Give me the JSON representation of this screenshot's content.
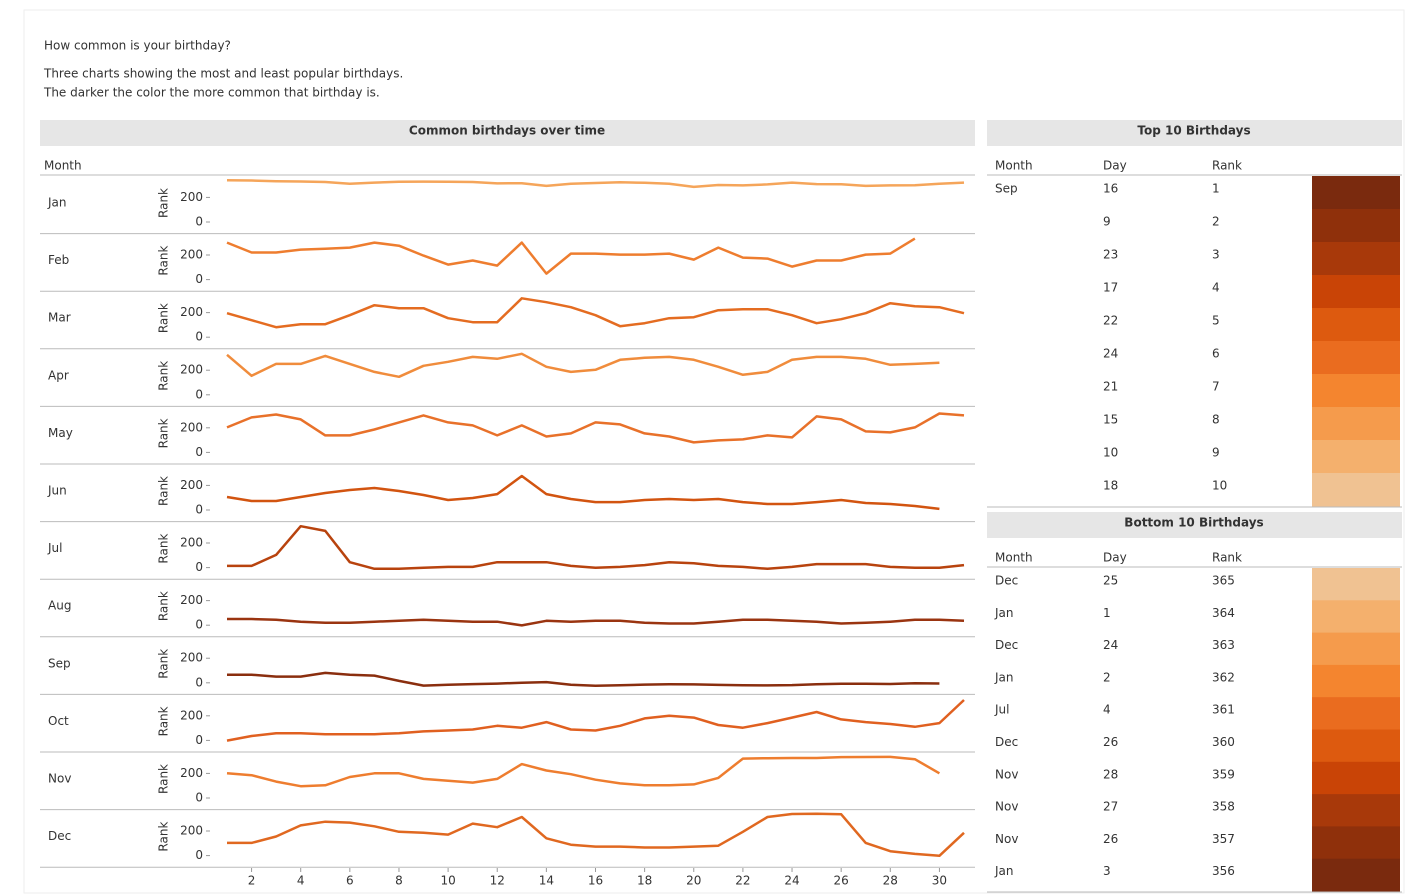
{
  "header": {
    "title": "How common is your birthday?",
    "subtitle_lines": [
      "Three charts showing the most and least popular birthdays.",
      "The darker the color the more common that birthday is."
    ]
  },
  "chart_data": {
    "type": "line",
    "title": "Common birthdays over time",
    "facet_label": "Month",
    "y_label": "Rank",
    "x": [
      1,
      2,
      3,
      4,
      5,
      6,
      7,
      8,
      9,
      10,
      11,
      12,
      13,
      14,
      15,
      16,
      17,
      18,
      19,
      20,
      21,
      22,
      23,
      24,
      25,
      26,
      27,
      28,
      29,
      30,
      31
    ],
    "xlim": [
      1,
      31
    ],
    "xticks": [
      2,
      4,
      6,
      8,
      10,
      12,
      14,
      16,
      18,
      20,
      22,
      24,
      26,
      28,
      30
    ],
    "ylim": [
      0,
      366
    ],
    "yticks": [
      0,
      200
    ],
    "series": [
      {
        "name": "Jan",
        "color": "#f5a55a",
        "values": [
          364,
          362,
          356,
          354,
          350,
          335,
          345,
          352,
          353,
          352,
          350,
          338,
          340,
          318,
          335,
          342,
          347,
          343,
          336,
          310,
          325,
          322,
          330,
          345,
          333,
          332,
          318,
          322,
          324,
          335,
          345
        ]
      },
      {
        "name": "Feb",
        "color": "#ee7d2f",
        "values": [
          325,
          245,
          245,
          268,
          275,
          285,
          325,
          300,
          220,
          146,
          180,
          138,
          325,
          73,
          236,
          236,
          228,
          228,
          236,
          187,
          285,
          203,
          195,
          130,
          180,
          180,
          228,
          236,
          358,
          null,
          null
        ]
      },
      {
        "name": "Mar",
        "color": "#e46c21",
        "values": [
          220,
          163,
          106,
          130,
          130,
          203,
          285,
          260,
          260,
          179,
          146,
          146,
          341,
          309,
          268,
          203,
          114,
          138,
          179,
          187,
          244,
          252,
          252,
          203,
          138,
          171,
          220,
          301,
          276,
          268,
          220
        ]
      },
      {
        "name": "Apr",
        "color": "#f08c3c",
        "values": [
          350,
          179,
          276,
          276,
          341,
          276,
          211,
          171,
          260,
          293,
          333,
          317,
          358,
          252,
          211,
          228,
          309,
          325,
          333,
          309,
          252,
          187,
          211,
          309,
          333,
          333,
          317,
          268,
          276,
          285,
          null
        ]
      },
      {
        "name": "May",
        "color": "#e8712a",
        "values": [
          228,
          309,
          333,
          293,
          163,
          163,
          211,
          268,
          325,
          268,
          244,
          163,
          244,
          154,
          179,
          268,
          252,
          179,
          154,
          106,
          122,
          130,
          163,
          146,
          317,
          293,
          195,
          187,
          228,
          341,
          325
        ]
      },
      {
        "name": "Jun",
        "color": "#d25410",
        "values": [
          130,
          98,
          98,
          130,
          163,
          187,
          203,
          179,
          146,
          106,
          122,
          154,
          301,
          154,
          114,
          89,
          89,
          106,
          114,
          106,
          114,
          89,
          73,
          73,
          89,
          106,
          81,
          73,
          57,
          33,
          null
        ]
      },
      {
        "name": "Jul",
        "color": "#b8430e",
        "values": [
          38,
          38,
          128,
          361,
          323,
          68,
          15,
          15,
          23,
          30,
          30,
          68,
          68,
          68,
          38,
          23,
          30,
          45,
          68,
          60,
          38,
          30,
          15,
          30,
          53,
          53,
          53,
          30,
          23,
          23,
          45
        ]
      },
      {
        "name": "Aug",
        "color": "#9a3410",
        "values": [
          75,
          75,
          68,
          53,
          45,
          45,
          53,
          60,
          68,
          60,
          53,
          53,
          23,
          60,
          53,
          60,
          60,
          45,
          38,
          38,
          53,
          68,
          68,
          60,
          53,
          38,
          45,
          53,
          68,
          68,
          60
        ]
      },
      {
        "name": "Sep",
        "color": "#8a2e0e",
        "values": [
          90,
          90,
          75,
          75,
          105,
          90,
          83,
          40,
          2,
          9,
          14,
          18,
          25,
          30,
          8,
          1,
          4,
          10,
          12,
          11,
          7,
          5,
          3,
          6,
          13,
          16,
          17,
          15,
          20,
          19,
          null
        ]
      },
      {
        "name": "Oct",
        "color": "#e06020",
        "values": [
          23,
          60,
          83,
          83,
          75,
          75,
          75,
          83,
          98,
          105,
          113,
          143,
          128,
          173,
          113,
          105,
          143,
          203,
          225,
          210,
          150,
          128,
          165,
          210,
          255,
          195,
          173,
          158,
          135,
          165,
          353
        ]
      },
      {
        "name": "Nov",
        "color": "#ee7d2f",
        "values": [
          225,
          210,
          158,
          120,
          128,
          195,
          225,
          225,
          180,
          165,
          150,
          180,
          300,
          248,
          218,
          173,
          143,
          128,
          128,
          135,
          188,
          345,
          348,
          350,
          350,
          357,
          358,
          359,
          340,
          225,
          null
        ]
      },
      {
        "name": "Dec",
        "color": "#e06820",
        "values": [
          128,
          128,
          180,
          270,
          300,
          293,
          263,
          218,
          210,
          195,
          285,
          255,
          338,
          165,
          113,
          98,
          98,
          90,
          90,
          98,
          105,
          218,
          338,
          363,
          365,
          360,
          128,
          60,
          38,
          23,
          210
        ]
      }
    ]
  },
  "tables": [
    {
      "title": "Top 10 Birthdays",
      "columns": [
        "Month",
        "Day",
        "Rank"
      ],
      "rows": [
        [
          "Sep",
          "16",
          "1"
        ],
        [
          null,
          "9",
          "2"
        ],
        [
          null,
          "23",
          "3"
        ],
        [
          null,
          "17",
          "4"
        ],
        [
          null,
          "22",
          "5"
        ],
        [
          null,
          "24",
          "6"
        ],
        [
          null,
          "21",
          "7"
        ],
        [
          null,
          "15",
          "8"
        ],
        [
          null,
          "10",
          "9"
        ],
        [
          null,
          "18",
          "10"
        ]
      ],
      "colors": [
        "#7a2a0e",
        "#8f300b",
        "#a8390a",
        "#c94406",
        "#dd5a0f",
        "#ea6c1f",
        "#f4852f",
        "#f59b4c",
        "#f4b06d",
        "#f0c292"
      ]
    },
    {
      "title": "Bottom 10 Birthdays",
      "columns": [
        "Month",
        "Day",
        "Rank"
      ],
      "rows": [
        [
          "Dec",
          "25",
          "365"
        ],
        [
          "Jan",
          "1",
          "364"
        ],
        [
          "Dec",
          "24",
          "363"
        ],
        [
          "Jan",
          "2",
          "362"
        ],
        [
          "Jul",
          "4",
          "361"
        ],
        [
          "Dec",
          "26",
          "360"
        ],
        [
          "Nov",
          "28",
          "359"
        ],
        [
          "Nov",
          "27",
          "358"
        ],
        [
          "Nov",
          "26",
          "357"
        ],
        [
          "Jan",
          "3",
          "356"
        ]
      ],
      "colors": [
        "#f0c292",
        "#f4b06d",
        "#f59b4c",
        "#f4852f",
        "#ea6c1f",
        "#dd5a0f",
        "#c94406",
        "#a8390a",
        "#8f300b",
        "#7a2a0e"
      ]
    }
  ]
}
